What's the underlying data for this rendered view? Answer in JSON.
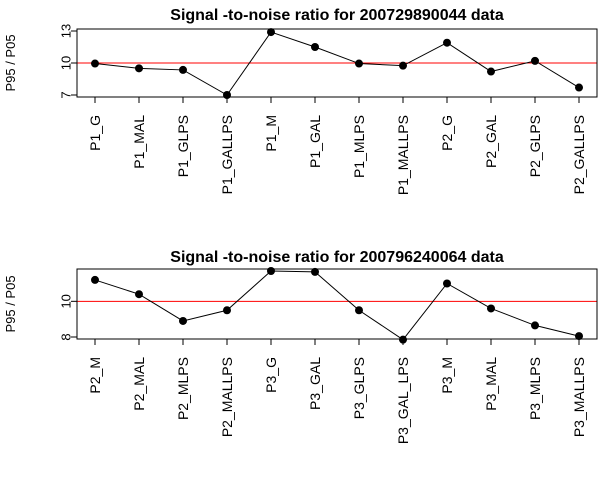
{
  "chart_data": [
    {
      "type": "line",
      "title": "Signal -to-noise  ratio  for  200729890044  data",
      "ylabel": "P95 / P05",
      "xlabel": "",
      "categories": [
        "P1_G",
        "P1_MAL",
        "P1_GLPS",
        "P1_GALLPS",
        "P1_M",
        "P1_GAL",
        "P1_MLPS",
        "P1_MALLPS",
        "P2_G",
        "P2_GAL",
        "P2_GLPS",
        "P2_GALLPS"
      ],
      "values": [
        9.95,
        9.5,
        9.35,
        7.0,
        12.9,
        11.5,
        9.95,
        9.75,
        11.9,
        9.2,
        10.2,
        7.7
      ],
      "ylim": [
        7,
        13
      ],
      "yticks": [
        "7",
        "10",
        "13"
      ],
      "reference_line": 10,
      "reference_color": "#ff0000",
      "line_color": "#000000"
    },
    {
      "type": "line",
      "title": "Signal -to-noise  ratio  for  200796240064  data",
      "ylabel": "P95 / P05",
      "xlabel": "",
      "categories": [
        "P2_M",
        "P2_MAL",
        "P2_MLPS",
        "P2_MALLPS",
        "P3_G",
        "P3_GAL",
        "P3_GLPS",
        "P3_GAL_LPS",
        "P3_M",
        "P3_MAL",
        "P3_MLPS",
        "P3_MALLPS"
      ],
      "values": [
        11.2,
        10.4,
        8.9,
        9.5,
        11.7,
        11.65,
        9.5,
        7.85,
        11.0,
        9.6,
        8.65,
        8.05
      ],
      "ylim": [
        8,
        11.7
      ],
      "yticks": [
        "8",
        "10"
      ],
      "reference_line": 10,
      "reference_color": "#ff0000",
      "line_color": "#000000"
    }
  ]
}
